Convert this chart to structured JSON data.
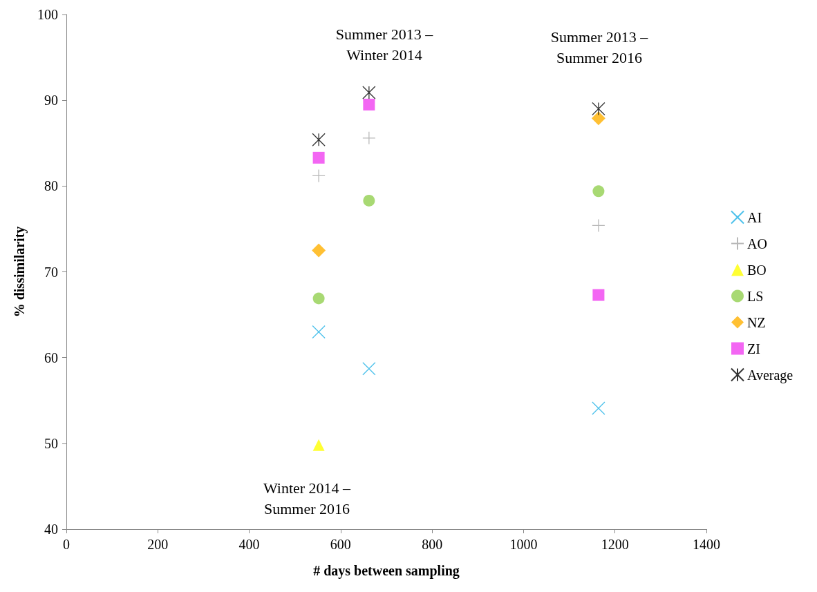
{
  "chart_data": {
    "type": "scatter",
    "xlabel": "# days between sampling",
    "ylabel": "% dissimilarity",
    "xlim": [
      0,
      1400
    ],
    "xticks": [
      0,
      200,
      400,
      600,
      800,
      1000,
      1200,
      1400
    ],
    "ylim": [
      40,
      100
    ],
    "yticks": [
      40,
      50,
      60,
      70,
      80,
      90,
      100
    ],
    "grid": false,
    "legend": "right",
    "annotations": [
      "Summer 2013 –\nWinter 2014",
      "Summer 2013 –\nSummer 2016",
      "Winter 2014 –\nSummer 2016"
    ],
    "series": [
      {
        "name": "AI",
        "color": "#1fb2e6",
        "marker": "x",
        "x": [
          552,
          662,
          1164
        ],
        "values": [
          63.0,
          58.7,
          54.1
        ]
      },
      {
        "name": "AO",
        "color": "#a6a6a6",
        "marker": "plus",
        "x": [
          552,
          662,
          1164
        ],
        "values": [
          81.2,
          85.6,
          75.4
        ]
      },
      {
        "name": "BO",
        "color": "#ffff00",
        "marker": "triangle",
        "x": [
          552
        ],
        "values": [
          49.8
        ]
      },
      {
        "name": "LS",
        "color": "#92d050",
        "marker": "circle",
        "x": [
          552,
          662,
          1164
        ],
        "values": [
          66.9,
          78.3,
          79.4
        ]
      },
      {
        "name": "NZ",
        "color": "#ffb000",
        "marker": "diamond",
        "x": [
          552,
          1164
        ],
        "values": [
          72.5,
          87.9
        ]
      },
      {
        "name": "ZI",
        "color": "#f040f0",
        "marker": "square",
        "x": [
          552,
          662,
          1164
        ],
        "values": [
          83.3,
          89.5,
          67.3
        ]
      },
      {
        "name": "Average",
        "color": "#000000",
        "marker": "cross",
        "x": [
          552,
          662,
          1164
        ],
        "values": [
          85.4,
          90.9,
          89.0
        ]
      }
    ]
  }
}
